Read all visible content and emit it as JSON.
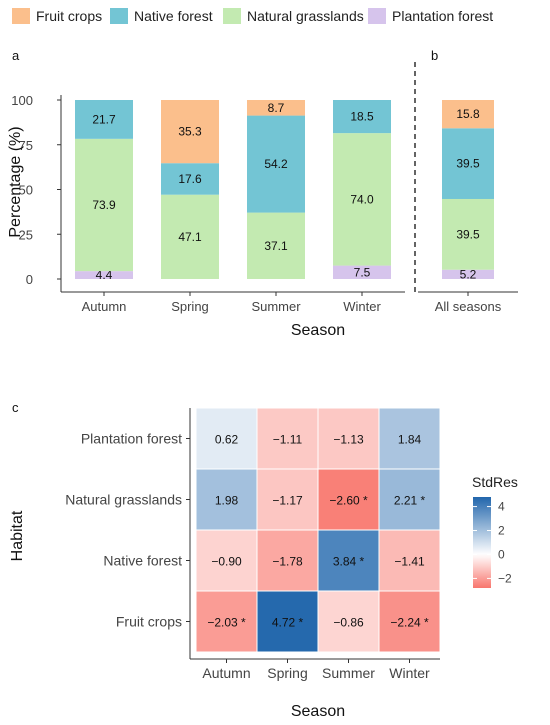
{
  "legend": {
    "items": [
      {
        "name": "Fruit crops",
        "color": "#fbbf8c"
      },
      {
        "name": "Native forest",
        "color": "#73c5d4"
      },
      {
        "name": "Natural grasslands",
        "color": "#c3eab1"
      },
      {
        "name": "Plantation forest",
        "color": "#d6c4ec"
      }
    ]
  },
  "panel_labels": {
    "a": "a",
    "b": "b",
    "c": "c"
  },
  "chart_data": [
    {
      "type": "bar",
      "stacked": true,
      "panel": "a",
      "categories": [
        "Autumn",
        "Spring",
        "Summer",
        "Winter"
      ],
      "series": [
        {
          "name": "Plantation forest",
          "values": [
            4.4,
            0,
            0,
            7.5
          ],
          "labels": [
            "4.4",
            "",
            "",
            "7.5"
          ]
        },
        {
          "name": "Natural grasslands",
          "values": [
            73.9,
            47.1,
            37.1,
            74.0
          ],
          "labels": [
            "73.9",
            "47.1",
            "37.1",
            "74.0"
          ]
        },
        {
          "name": "Native forest",
          "values": [
            21.7,
            17.6,
            54.2,
            18.5
          ],
          "labels": [
            "21.7",
            "17.6",
            "54.2",
            "18.5"
          ]
        },
        {
          "name": "Fruit crops",
          "values": [
            0,
            35.3,
            8.7,
            0
          ],
          "labels": [
            "",
            "35.3",
            "8.7",
            ""
          ]
        }
      ],
      "xlabel": "Season",
      "ylabel": "Percentage (%)",
      "ylim": [
        0,
        100
      ],
      "yticks": [
        "0",
        "25",
        "50",
        "75",
        "100"
      ],
      "grid": false,
      "legend": "top"
    },
    {
      "type": "bar",
      "stacked": true,
      "panel": "b",
      "categories": [
        "All seasons"
      ],
      "series": [
        {
          "name": "Plantation forest",
          "values": [
            5.2
          ],
          "labels": [
            "5.2"
          ]
        },
        {
          "name": "Natural grasslands",
          "values": [
            39.5
          ],
          "labels": [
            "39.5"
          ]
        },
        {
          "name": "Native forest",
          "values": [
            39.5
          ],
          "labels": [
            "39.5"
          ]
        },
        {
          "name": "Fruit crops",
          "values": [
            15.8
          ],
          "labels": [
            "15.8"
          ]
        }
      ],
      "ylim": [
        0,
        100
      ],
      "grid": false
    },
    {
      "type": "heatmap",
      "panel": "c",
      "x": [
        "Autumn",
        "Spring",
        "Summer",
        "Winter"
      ],
      "y": [
        "Plantation forest",
        "Natural grasslands",
        "Native forest",
        "Fruit crops"
      ],
      "values": [
        [
          0.62,
          -1.11,
          -1.13,
          1.84
        ],
        [
          1.98,
          -1.17,
          -2.6,
          2.21
        ],
        [
          -0.9,
          -1.78,
          3.84,
          -1.41
        ],
        [
          -2.03,
          4.72,
          -0.86,
          -2.24
        ]
      ],
      "labels": [
        [
          "0.62",
          "−1.11",
          "−1.13",
          "1.84"
        ],
        [
          "1.98",
          "−1.17",
          "−2.60 *",
          "2.21 *"
        ],
        [
          "−0.90",
          "−1.78",
          "3.84 *",
          "−1.41"
        ],
        [
          "−2.03 *",
          "4.72 *",
          "−0.86",
          "−2.24 *"
        ]
      ],
      "xlabel": "Season",
      "ylabel": "Habitat",
      "colorbar": {
        "title": "StdRes",
        "ticks": [
          "4",
          "2",
          "0",
          "−2"
        ],
        "tick_values": [
          4,
          2,
          0,
          -2
        ],
        "range": [
          -2.8,
          4.8
        ],
        "low_color": "#f8766d",
        "mid_color": "#ffffff",
        "high_color": "#2166ac"
      },
      "grid": false
    }
  ]
}
